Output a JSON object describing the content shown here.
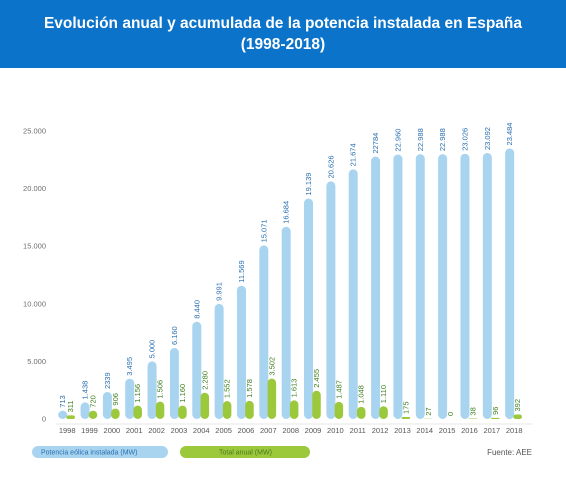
{
  "header": {
    "title_line1": "Evolución anual y acumulada de la potencia instalada en España",
    "title_line2": "(1998-2018)"
  },
  "chart_data": {
    "type": "bar",
    "categories": [
      "1998",
      "1999",
      "2000",
      "2001",
      "2002",
      "2003",
      "2004",
      "2005",
      "2006",
      "2007",
      "2008",
      "2009",
      "2010",
      "2011",
      "2012",
      "2013",
      "2014",
      "2015",
      "2016",
      "2017",
      "2018"
    ],
    "series": [
      {
        "name": "Potencia eólica instalada (MW)",
        "values": [
          713,
          1438,
          2339,
          3495,
          5000,
          6160,
          8440,
          9991,
          11569,
          15071,
          16684,
          19139,
          20626,
          21674,
          22784,
          22960,
          22988,
          22988,
          23026,
          23092,
          23484
        ],
        "labels": [
          "713",
          "1.438",
          "2339",
          "3.495",
          "5.000",
          "6.160",
          "8.440",
          "9.991",
          "11.569",
          "15.071",
          "16.684",
          "19.139",
          "20.626",
          "21.674",
          "22784",
          "22.960",
          "22.988",
          "22.988",
          "23.026",
          "23.092",
          "23.484"
        ],
        "color": "#a8d4f0"
      },
      {
        "name": "Total anual (MW)",
        "values": [
          311,
          720,
          906,
          1156,
          1506,
          1160,
          2280,
          1552,
          1578,
          3502,
          1613,
          2455,
          1487,
          1048,
          1110,
          175,
          27,
          0,
          38,
          96,
          392
        ],
        "labels": [
          "311",
          "720",
          "906",
          "1.156",
          "1.506",
          "1.160",
          "2.280",
          "1.552",
          "1.578",
          "3.502",
          "1.613",
          "2.455",
          "1.487",
          "1.048",
          "1.110",
          "175",
          "27",
          "0",
          "38",
          "96",
          "392"
        ],
        "color": "#9cc83c"
      }
    ],
    "yticks": [
      0,
      5000,
      10000,
      15000,
      20000,
      25000
    ],
    "ytick_labels": [
      "0",
      "5.000",
      "10.000",
      "15.000",
      "20.000",
      "25.000"
    ],
    "ylim": [
      0,
      25000
    ],
    "grid": false,
    "legend_placement": "bottom",
    "source": "Fuente: AEE"
  }
}
